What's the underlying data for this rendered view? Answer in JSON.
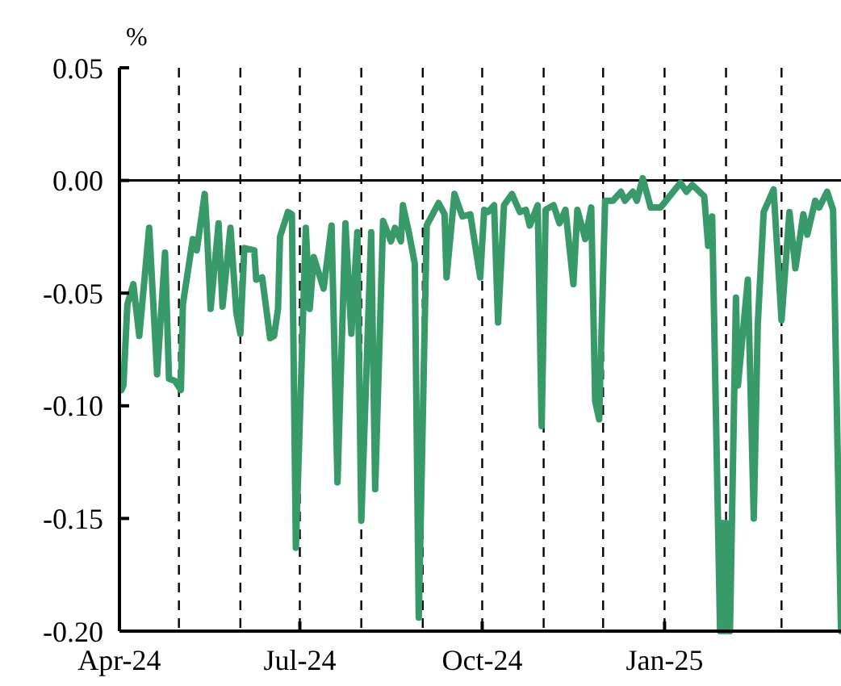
{
  "chart_data": {
    "type": "line",
    "ylabel": "%",
    "x": [
      "2024-04-02",
      "2024-04-03",
      "2024-04-05",
      "2024-04-08",
      "2024-04-11",
      "2024-04-16",
      "2024-04-20",
      "2024-04-24",
      "2024-04-26",
      "2024-04-29",
      "2024-05-02",
      "2024-05-03",
      "2024-05-08",
      "2024-05-10",
      "2024-05-14",
      "2024-05-15",
      "2024-05-17",
      "2024-05-21",
      "2024-05-23",
      "2024-05-27",
      "2024-05-30",
      "2024-06-01",
      "2024-06-03",
      "2024-06-08",
      "2024-06-09",
      "2024-06-12",
      "2024-06-16",
      "2024-06-18",
      "2024-06-20",
      "2024-06-21",
      "2024-06-25",
      "2024-06-27",
      "2024-06-29",
      "2024-07-04",
      "2024-07-06",
      "2024-07-08",
      "2024-07-13",
      "2024-07-17",
      "2024-07-20",
      "2024-07-24",
      "2024-07-27",
      "2024-07-30",
      "2024-08-01",
      "2024-08-06",
      "2024-08-08",
      "2024-08-12",
      "2024-08-16",
      "2024-08-18",
      "2024-08-21",
      "2024-08-22",
      "2024-08-25",
      "2024-08-28",
      "2024-08-30",
      "2024-09-03",
      "2024-09-09",
      "2024-09-12",
      "2024-09-13",
      "2024-09-17",
      "2024-09-21",
      "2024-09-25",
      "2024-09-28",
      "2024-09-30",
      "2024-10-02",
      "2024-10-04",
      "2024-10-07",
      "2024-10-09",
      "2024-10-12",
      "2024-10-16",
      "2024-10-20",
      "2024-10-23",
      "2024-10-25",
      "2024-10-29",
      "2024-10-31",
      "2024-11-02",
      "2024-11-06",
      "2024-11-09",
      "2024-11-12",
      "2024-11-16",
      "2024-11-18",
      "2024-11-22",
      "2024-11-25",
      "2024-11-27",
      "2024-11-29",
      "2024-12-02",
      "2024-12-06",
      "2024-12-10",
      "2024-12-12",
      "2024-12-16",
      "2024-12-18",
      "2024-12-21",
      "2024-12-25",
      "2024-12-30",
      "2025-01-09",
      "2025-01-12",
      "2025-01-15",
      "2025-01-21",
      "2025-01-23",
      "2025-01-25",
      "2025-01-29",
      "2025-01-30",
      "2025-01-31",
      "2025-02-01",
      "2025-02-02",
      "2025-02-03",
      "2025-02-06",
      "2025-02-07",
      "2025-02-12",
      "2025-02-15",
      "2025-02-17",
      "2025-02-20",
      "2025-02-25",
      "2025-03-01",
      "2025-03-05",
      "2025-03-08",
      "2025-03-12",
      "2025-03-14",
      "2025-03-18",
      "2025-03-20",
      "2025-03-24",
      "2025-03-27",
      "2025-03-31"
    ],
    "series": [
      {
        "color": "#389a68",
        "values": [
          -0.093,
          -0.091,
          -0.055,
          -0.046,
          -0.069,
          -0.021,
          -0.086,
          -0.032,
          -0.088,
          -0.089,
          -0.093,
          -0.055,
          -0.026,
          -0.031,
          -0.006,
          -0.02,
          -0.057,
          -0.019,
          -0.056,
          -0.021,
          -0.059,
          -0.068,
          -0.03,
          -0.031,
          -0.044,
          -0.043,
          -0.07,
          -0.069,
          -0.057,
          -0.025,
          -0.014,
          -0.015,
          -0.163,
          -0.021,
          -0.057,
          -0.034,
          -0.048,
          -0.02,
          -0.134,
          -0.019,
          -0.068,
          -0.023,
          -0.151,
          -0.023,
          -0.137,
          -0.018,
          -0.027,
          -0.021,
          -0.027,
          -0.011,
          -0.023,
          -0.037,
          -0.194,
          -0.02,
          -0.01,
          -0.015,
          -0.043,
          -0.006,
          -0.016,
          -0.015,
          -0.032,
          -0.043,
          -0.013,
          -0.014,
          -0.011,
          -0.063,
          -0.011,
          -0.006,
          -0.014,
          -0.013,
          -0.02,
          -0.011,
          -0.109,
          -0.013,
          -0.011,
          -0.019,
          -0.013,
          -0.046,
          -0.013,
          -0.026,
          -0.012,
          -0.098,
          -0.106,
          -0.009,
          -0.009,
          -0.005,
          -0.009,
          -0.005,
          -0.009,
          0.001,
          -0.012,
          -0.012,
          -0.001,
          -0.005,
          -0.002,
          -0.007,
          -0.029,
          -0.016,
          -0.2,
          -0.152,
          -0.2,
          -0.152,
          -0.2,
          -0.2,
          -0.052,
          -0.091,
          -0.044,
          -0.15,
          -0.064,
          -0.014,
          -0.004,
          -0.062,
          -0.014,
          -0.039,
          -0.015,
          -0.024,
          -0.009,
          -0.012,
          -0.005,
          -0.013,
          -0.2
        ]
      }
    ],
    "xlim": [
      "2024-04-01",
      "2025-03-31"
    ],
    "xticks": [
      {
        "value": "2024-04-01",
        "label": "Apr-24"
      },
      {
        "value": "2024-07-01",
        "label": "Jul-24"
      },
      {
        "value": "2024-10-01",
        "label": "Oct-24"
      },
      {
        "value": "2025-01-01",
        "label": "Jan-25"
      }
    ],
    "ylim": [
      -0.2,
      0.05
    ],
    "yticks": [
      {
        "value": 0.05,
        "label": "0.05"
      },
      {
        "value": 0,
        "label": "0.00"
      },
      {
        "value": -0.05,
        "label": "-0.05"
      },
      {
        "value": -0.1,
        "label": "-0.10"
      },
      {
        "value": -0.15,
        "label": "-0.15"
      },
      {
        "value": -0.2,
        "label": "-0.20"
      }
    ],
    "ref_lines": [
      {
        "axis": "y",
        "value": 0,
        "line_style": "solid",
        "color": "#000000"
      },
      {
        "axis": "x",
        "value": "2024-05-01",
        "line_style": "dashed",
        "color": "#000000"
      },
      {
        "axis": "x",
        "value": "2024-06-01",
        "line_style": "dashed",
        "color": "#000000"
      },
      {
        "axis": "x",
        "value": "2024-07-01",
        "line_style": "dashed",
        "color": "#000000"
      },
      {
        "axis": "x",
        "value": "2024-08-01",
        "line_style": "dashed",
        "color": "#000000"
      },
      {
        "axis": "x",
        "value": "2024-09-01",
        "line_style": "dashed",
        "color": "#000000"
      },
      {
        "axis": "x",
        "value": "2024-10-01",
        "line_style": "dashed",
        "color": "#000000"
      },
      {
        "axis": "x",
        "value": "2024-11-01",
        "line_style": "dashed",
        "color": "#000000"
      },
      {
        "axis": "x",
        "value": "2024-12-01",
        "line_style": "dashed",
        "color": "#000000"
      },
      {
        "axis": "x",
        "value": "2025-01-01",
        "line_style": "dashed",
        "color": "#000000"
      },
      {
        "axis": "x",
        "value": "2025-02-01",
        "line_style": "dashed",
        "color": "#000000"
      },
      {
        "axis": "x",
        "value": "2025-03-01",
        "line_style": "dashed",
        "color": "#000000"
      }
    ],
    "grid": false,
    "line_style": "solid",
    "marker": "none"
  }
}
